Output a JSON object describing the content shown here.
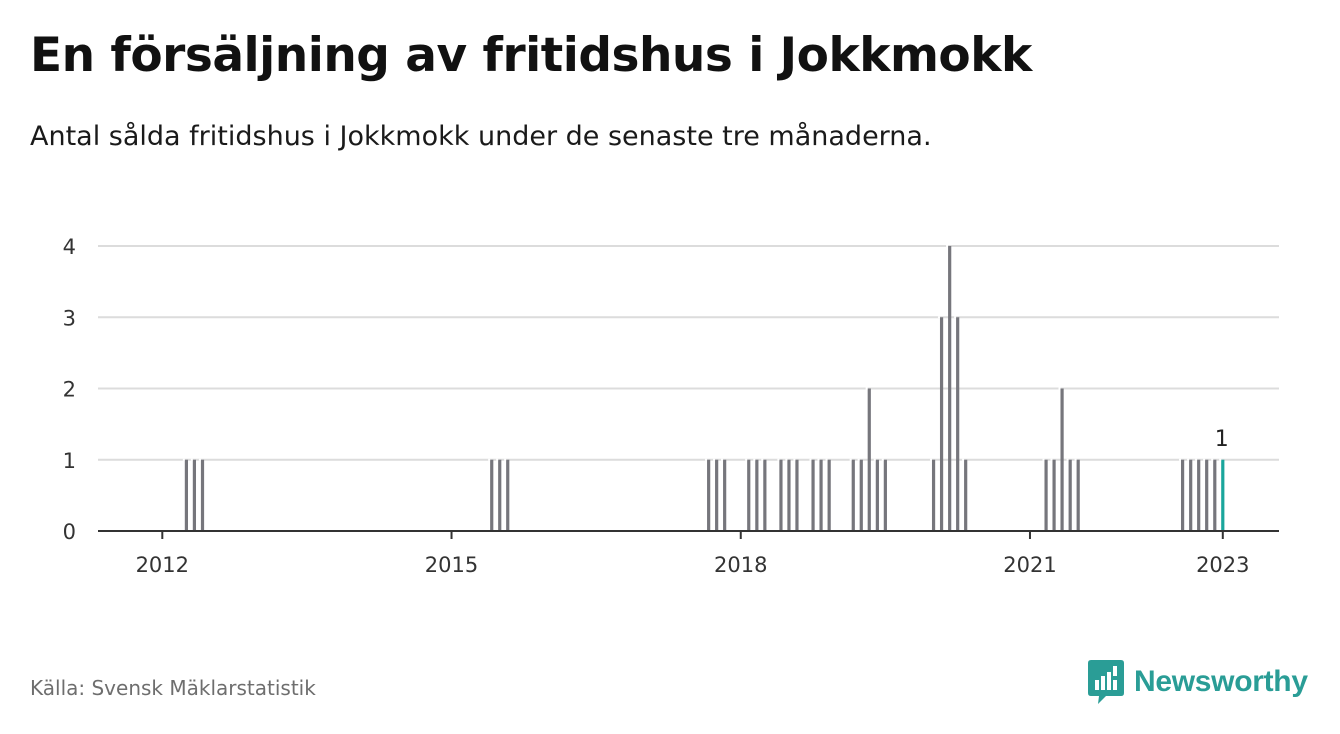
{
  "title": "En försäljning av fritidshus i Jokkmokk",
  "subtitle": "Antal sålda fritidshus i Jokkmokk under de senaste tre månaderna.",
  "source": "Källa: Svensk Mäklarstatistik",
  "brand": {
    "name": "Newsworthy",
    "color": "#2a9d96",
    "icon": "newsworthy-bar-chart-icon"
  },
  "colors": {
    "bar": "#76767c",
    "highlight": "#1aa69c",
    "grid": "#dcdcdc",
    "axis": "#333333"
  },
  "chart_data": {
    "type": "bar",
    "title": "En försäljning av fritidshus i Jokkmokk",
    "xlabel": "",
    "ylabel": "",
    "ylim": [
      0,
      4
    ],
    "yticks": [
      0,
      1,
      2,
      3,
      4
    ],
    "xlim": [
      2011.333,
      2023.583
    ],
    "xticks": [
      {
        "label": "2012",
        "value": 2012
      },
      {
        "label": "2015",
        "value": 2015
      },
      {
        "label": "2018",
        "value": 2018
      },
      {
        "label": "2021",
        "value": 2021
      },
      {
        "label": "2023",
        "value": 2023
      }
    ],
    "grid": true,
    "highlight_label": "1",
    "points": [
      {
        "t": 2012.25,
        "v": 1
      },
      {
        "t": 2012.333,
        "v": 1
      },
      {
        "t": 2012.417,
        "v": 1
      },
      {
        "t": 2015.417,
        "v": 1
      },
      {
        "t": 2015.5,
        "v": 1
      },
      {
        "t": 2015.583,
        "v": 1
      },
      {
        "t": 2017.667,
        "v": 1
      },
      {
        "t": 2017.75,
        "v": 1
      },
      {
        "t": 2017.833,
        "v": 1
      },
      {
        "t": 2018.083,
        "v": 1
      },
      {
        "t": 2018.167,
        "v": 1
      },
      {
        "t": 2018.25,
        "v": 1
      },
      {
        "t": 2018.417,
        "v": 1
      },
      {
        "t": 2018.5,
        "v": 1
      },
      {
        "t": 2018.583,
        "v": 1
      },
      {
        "t": 2018.75,
        "v": 1
      },
      {
        "t": 2018.833,
        "v": 1
      },
      {
        "t": 2018.917,
        "v": 1
      },
      {
        "t": 2019.167,
        "v": 1
      },
      {
        "t": 2019.25,
        "v": 1
      },
      {
        "t": 2019.333,
        "v": 2
      },
      {
        "t": 2019.417,
        "v": 1
      },
      {
        "t": 2019.5,
        "v": 1
      },
      {
        "t": 2020.0,
        "v": 1
      },
      {
        "t": 2020.083,
        "v": 3
      },
      {
        "t": 2020.167,
        "v": 4
      },
      {
        "t": 2020.25,
        "v": 3
      },
      {
        "t": 2020.333,
        "v": 1
      },
      {
        "t": 2021.167,
        "v": 1
      },
      {
        "t": 2021.25,
        "v": 1
      },
      {
        "t": 2021.333,
        "v": 2
      },
      {
        "t": 2021.417,
        "v": 1
      },
      {
        "t": 2021.5,
        "v": 1
      },
      {
        "t": 2022.583,
        "v": 1
      },
      {
        "t": 2022.667,
        "v": 1
      },
      {
        "t": 2022.75,
        "v": 1
      },
      {
        "t": 2022.833,
        "v": 1
      },
      {
        "t": 2022.917,
        "v": 1
      },
      {
        "t": 2023.0,
        "v": 1,
        "highlight": true
      }
    ]
  }
}
